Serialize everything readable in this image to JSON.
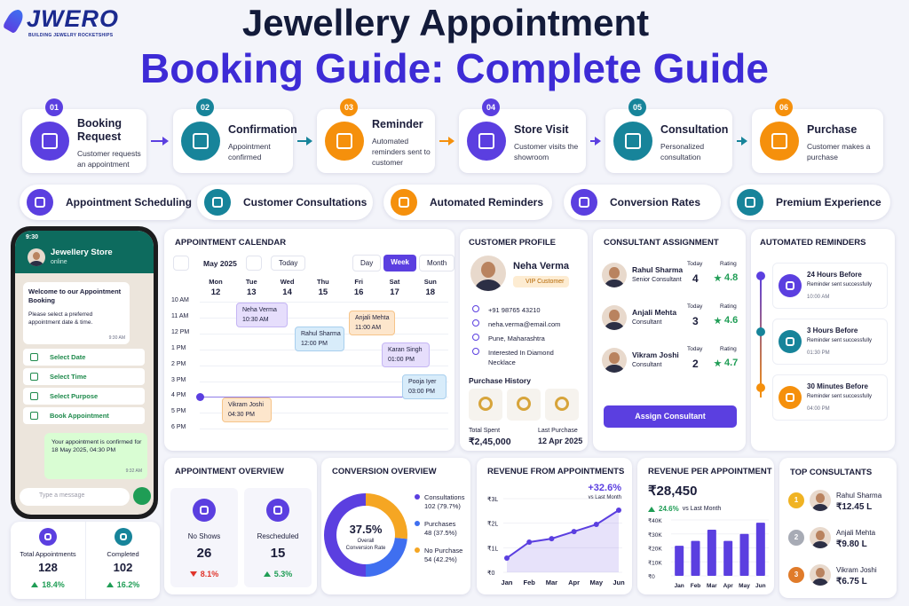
{
  "logo": {
    "name": "JWERO",
    "tagline": "BUILDING JEWELRY ROCKETSHIPS"
  },
  "title": {
    "line1": "Jewellery Appointment",
    "line2": "Booking Guide: Complete Guide"
  },
  "steps": [
    {
      "number": "01",
      "title": "Booking Request",
      "desc": "Customer requests an appointment",
      "color": "#5b3fe0"
    },
    {
      "number": "02",
      "title": "Confirmation",
      "desc": "Appointment confirmed",
      "color": "#17849a"
    },
    {
      "number": "03",
      "title": "Reminder",
      "desc": "Automated reminders sent to customer",
      "color": "#f5900c"
    },
    {
      "number": "04",
      "title": "Store Visit",
      "desc": "Customer visits the showroom",
      "color": "#5b3fe0"
    },
    {
      "number": "05",
      "title": "Consultation",
      "desc": "Personalized consultation",
      "color": "#17849a"
    },
    {
      "number": "06",
      "title": "Purchase",
      "desc": "Customer makes a purchase",
      "color": "#f5900c"
    }
  ],
  "features": [
    {
      "label": "Appointment Scheduling",
      "color": "#5b3fe0"
    },
    {
      "label": "Customer Consultations",
      "color": "#17849a"
    },
    {
      "label": "Automated Reminders",
      "color": "#f5900c"
    },
    {
      "label": "Conversion Rates",
      "color": "#5b3fe0"
    },
    {
      "label": "Premium Experience",
      "color": "#17849a"
    }
  ],
  "phone": {
    "time": "9:30",
    "contact": "Jewellery Store",
    "status": "online",
    "message": {
      "title": "Welcome to our Appointment Booking",
      "body": "Please select a preferred appointment date & time.",
      "time": "9:30 AM"
    },
    "options": [
      "Select Date",
      "Select Time",
      "Select Purpose",
      "Book Appointment"
    ],
    "reply": {
      "text": "Your appointment is confirmed for 18 May 2025, 04:30 PM",
      "time": "9:32 AM"
    },
    "input_placeholder": "Type a message"
  },
  "summary": [
    {
      "label": "Total Appointments",
      "value": 128,
      "change": "18.4%",
      "trend": "up"
    },
    {
      "label": "Completed",
      "value": 102,
      "change": "16.2%",
      "trend": "up"
    }
  ],
  "calendar": {
    "title": "APPOINTMENT CALENDAR",
    "month": "May 2025",
    "today": "Today",
    "views": [
      "Day",
      "Week",
      "Month"
    ],
    "active_view": "Week",
    "days": [
      {
        "name": "Mon",
        "date": "12"
      },
      {
        "name": "Tue",
        "date": "13"
      },
      {
        "name": "Wed",
        "date": "14"
      },
      {
        "name": "Thu",
        "date": "15"
      },
      {
        "name": "Fri",
        "date": "16"
      },
      {
        "name": "Sat",
        "date": "17"
      },
      {
        "name": "Sun",
        "date": "18"
      }
    ],
    "hours": [
      "10 AM",
      "11 AM",
      "12 PM",
      "1 PM",
      "2 PM",
      "3 PM",
      "4 PM",
      "5 PM",
      "6 PM"
    ],
    "appointments": [
      {
        "name": "Neha Verma",
        "time": "10:30 AM"
      },
      {
        "name": "Rahul Sharma",
        "time": "12:00 PM"
      },
      {
        "name": "Anjali Mehta",
        "time": "11:00 AM"
      },
      {
        "name": "Karan Singh",
        "time": "01:00 PM"
      },
      {
        "name": "Pooja Iyer",
        "time": "03:00 PM"
      },
      {
        "name": "Vikram Joshi",
        "time": "04:30 PM"
      }
    ]
  },
  "profile": {
    "title": "CUSTOMER PROFILE",
    "name": "Neha Verma",
    "badge": "VIP Customer",
    "phone": "+91 98765 43210",
    "email": "neha.verma@email.com",
    "location": "Pune, Maharashtra",
    "interest": "Interested In Diamond Necklace",
    "history_title": "Purchase History",
    "total_spent_label": "Total Spent",
    "total_spent": "₹2,45,000",
    "last_purchase_label": "Last Purchase",
    "last_purchase": "12 Apr 2025"
  },
  "consultants": {
    "title": "CONSULTANT ASSIGNMENT",
    "today_label": "Today",
    "rating_label": "Rating",
    "items": [
      {
        "name": "Rahul Sharma",
        "role": "Senior Consultant",
        "today": 4,
        "rating": 4.8
      },
      {
        "name": "Anjali Mehta",
        "role": "Consultant",
        "today": 3,
        "rating": 4.6
      },
      {
        "name": "Vikram Joshi",
        "role": "Consultant",
        "today": 2,
        "rating": 4.7
      }
    ],
    "button": "Assign Consultant"
  },
  "reminders": {
    "title": "AUTOMATED REMINDERS",
    "items": [
      {
        "title": "24 Hours Before",
        "status": "Reminder sent successfully",
        "time": "10:00 AM",
        "color": "#5b3fe0"
      },
      {
        "title": "3 Hours Before",
        "status": "Reminder sent successfully",
        "time": "01:30 PM",
        "color": "#17849a"
      },
      {
        "title": "30 Minutes Before",
        "status": "Reminder sent successfully",
        "time": "04:00 PM",
        "color": "#f5900c"
      }
    ]
  },
  "overview": {
    "title": "APPOINTMENT OVERVIEW",
    "items": [
      {
        "label": "No Shows",
        "value": 26,
        "change": "8.1%",
        "trend": "down"
      },
      {
        "label": "Rescheduled",
        "value": 15,
        "change": "5.3%",
        "trend": "up"
      }
    ]
  },
  "top_consultants": {
    "title": "TOP CONSULTANTS",
    "items": [
      {
        "rank": "1",
        "name": "Rahul Sharma",
        "amount": "₹12.45 L",
        "color": "#f0b323"
      },
      {
        "rank": "2",
        "name": "Anjali Mehta",
        "amount": "₹9.80 L",
        "color": "#a7abb5"
      },
      {
        "rank": "3",
        "name": "Vikram Joshi",
        "amount": "₹6.75 L",
        "color": "#e07b2a"
      }
    ]
  },
  "chart_data": [
    {
      "type": "donut",
      "title": "CONVERSION OVERVIEW",
      "center_value": "37.5%",
      "center_label": "Overall Conversion Rate",
      "categories": [
        "Consultations",
        "Purchases",
        "No Purchase"
      ],
      "values": [
        102,
        48,
        54
      ],
      "value_labels": [
        "102 (79.7%)",
        "48 (37.5%)",
        "54 (42.2%)"
      ],
      "colors": [
        "#5b3fe0",
        "#3f6ff0",
        "#f5a623"
      ]
    },
    {
      "type": "line",
      "title": "REVENUE FROM APPOINTMENTS",
      "change": "+32.6%",
      "change_note": "vs Last Month",
      "categories": [
        "Jan",
        "Feb",
        "Mar",
        "Apr",
        "May",
        "Jun"
      ],
      "values": [
        58000,
        123000,
        137000,
        166000,
        195000,
        253000
      ],
      "color": "#5b3fe0",
      "area": true,
      "ylim": [
        0,
        300000
      ],
      "yticks": [
        {
          "value": 0,
          "label": "₹0"
        },
        {
          "value": 100000,
          "label": "₹1L"
        },
        {
          "value": 200000,
          "label": "₹2L"
        },
        {
          "value": 300000,
          "label": "₹3L"
        }
      ]
    },
    {
      "type": "bar",
      "title": "REVENUE PER APPOINTMENT",
      "headline": "₹28,450",
      "change": "24.6%",
      "trend": "up",
      "change_note": "vs Last Month",
      "categories": [
        "Jan",
        "Feb",
        "Mar",
        "Apr",
        "May",
        "Jun"
      ],
      "values": [
        21500,
        25000,
        33000,
        25000,
        30000,
        38000
      ],
      "color": "#5b3fe0",
      "ylim": [
        0,
        40000
      ],
      "yticks": [
        {
          "value": 0,
          "label": "₹0"
        },
        {
          "value": 10000,
          "label": "₹10K"
        },
        {
          "value": 20000,
          "label": "₹20K"
        },
        {
          "value": 30000,
          "label": "₹30K"
        },
        {
          "value": 40000,
          "label": "₹40K"
        }
      ]
    }
  ]
}
